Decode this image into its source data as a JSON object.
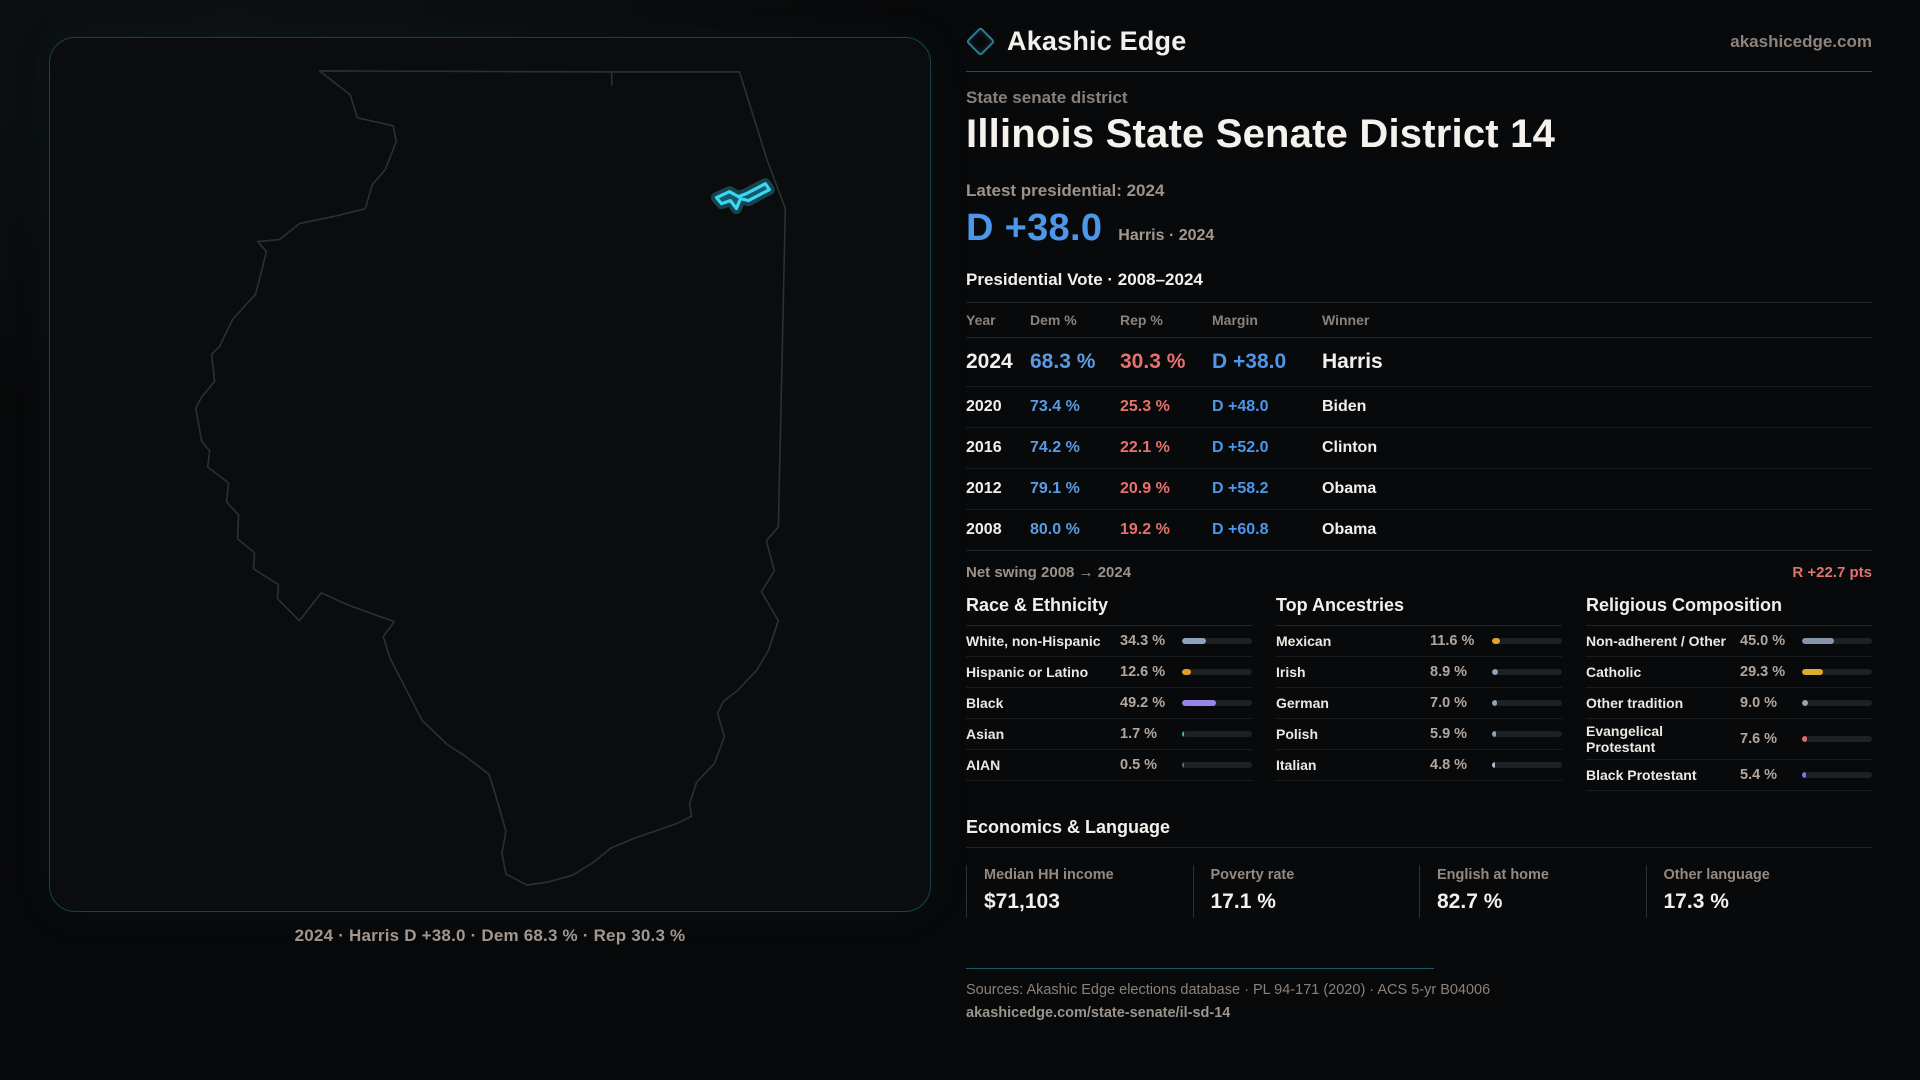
{
  "brand": {
    "name": "Akashic Edge",
    "site": "akashicedge.com"
  },
  "district": {
    "eyebrow": "State senate district",
    "title": "Illinois State Senate District 14"
  },
  "latest": {
    "label": "Latest presidential: 2024",
    "margin": "D +38.0",
    "detail": "Harris · 2024"
  },
  "vote": {
    "title": "Presidential Vote · 2008–2024",
    "columns": [
      "Year",
      "Dem %",
      "Rep %",
      "Margin",
      "Winner"
    ],
    "rows": [
      {
        "year": "2024",
        "dem": "68.3 %",
        "rep": "30.3 %",
        "margin": "D +38.0",
        "winner": "Harris"
      },
      {
        "year": "2020",
        "dem": "73.4 %",
        "rep": "25.3 %",
        "margin": "D +48.0",
        "winner": "Biden"
      },
      {
        "year": "2016",
        "dem": "74.2 %",
        "rep": "22.1 %",
        "margin": "D +52.0",
        "winner": "Clinton"
      },
      {
        "year": "2012",
        "dem": "79.1 %",
        "rep": "20.9 %",
        "margin": "D +58.2",
        "winner": "Obama"
      },
      {
        "year": "2008",
        "dem": "80.0 %",
        "rep": "19.2 %",
        "margin": "D +60.8",
        "winner": "Obama"
      }
    ]
  },
  "swing": {
    "label": "Net swing 2008 → 2024",
    "value": "R +22.7 pts"
  },
  "demo": {
    "race": {
      "title": "Race & Ethnicity",
      "rows": [
        {
          "label": "White, non-Hispanic",
          "value": "34.3 %",
          "pct": 34.3,
          "color": "#8ba3bd"
        },
        {
          "label": "Hispanic or Latino",
          "value": "12.6 %",
          "pct": 12.6,
          "color": "#e39b27"
        },
        {
          "label": "Black",
          "value": "49.2 %",
          "pct": 49.2,
          "color": "#9585e8"
        },
        {
          "label": "Asian",
          "value": "1.7 %",
          "pct": 1.7,
          "color": "#35c492"
        },
        {
          "label": "AIAN",
          "value": "0.5 %",
          "pct": 0.5,
          "color": "#5a6a78"
        }
      ]
    },
    "ancestries": {
      "title": "Top Ancestries",
      "rows": [
        {
          "label": "Mexican",
          "value": "11.6 %",
          "pct": 11.6,
          "color": "#e8a02a"
        },
        {
          "label": "Irish",
          "value": "8.9 %",
          "pct": 8.9,
          "color": "#8ba3bd"
        },
        {
          "label": "German",
          "value": "7.0 %",
          "pct": 7.0,
          "color": "#8ba3bd"
        },
        {
          "label": "Polish",
          "value": "5.9 %",
          "pct": 5.9,
          "color": "#8ba3bd"
        },
        {
          "label": "Italian",
          "value": "4.8 %",
          "pct": 4.8,
          "color": "#aebfd2"
        }
      ]
    },
    "religion": {
      "title": "Religious Composition",
      "rows": [
        {
          "label": "Non-adherent / Other",
          "value": "45.0 %",
          "pct": 45.0,
          "color": "#8795a8"
        },
        {
          "label": "Catholic",
          "value": "29.3 %",
          "pct": 29.3,
          "color": "#d9ae2e"
        },
        {
          "label": "Other tradition",
          "value": "9.0 %",
          "pct": 9.0,
          "color": "#9aa3ad"
        },
        {
          "label": "Evangelical Protestant",
          "value": "7.6 %",
          "pct": 7.6,
          "color": "#e06a6a"
        },
        {
          "label": "Black Protestant",
          "value": "5.4 %",
          "pct": 5.4,
          "color": "#7d74e8"
        }
      ]
    }
  },
  "econ": {
    "title": "Economics & Language",
    "stats": [
      {
        "label": "Median HH income",
        "value": "$71,103"
      },
      {
        "label": "Poverty rate",
        "value": "17.1 %"
      },
      {
        "label": "English at home",
        "value": "82.7 %"
      },
      {
        "label": "Other language",
        "value": "17.3 %"
      }
    ]
  },
  "footer": {
    "sources": "Sources: Akashic Edge elections database · PL 94-171 (2020) · ACS 5-yr B04006",
    "url": "akashicedge.com/state-senate/il-sd-14"
  },
  "map": {
    "caption": "2024 · Harris D +38.0 · Dem 68.3 % · Rep 30.3 %"
  },
  "colors": {
    "accent_teal": "#1c5160",
    "district_cyan": "#3ad7f2",
    "dem_blue": "#5b9be4",
    "rep_red": "#e8716d",
    "swing_red": "#e2726e"
  }
}
